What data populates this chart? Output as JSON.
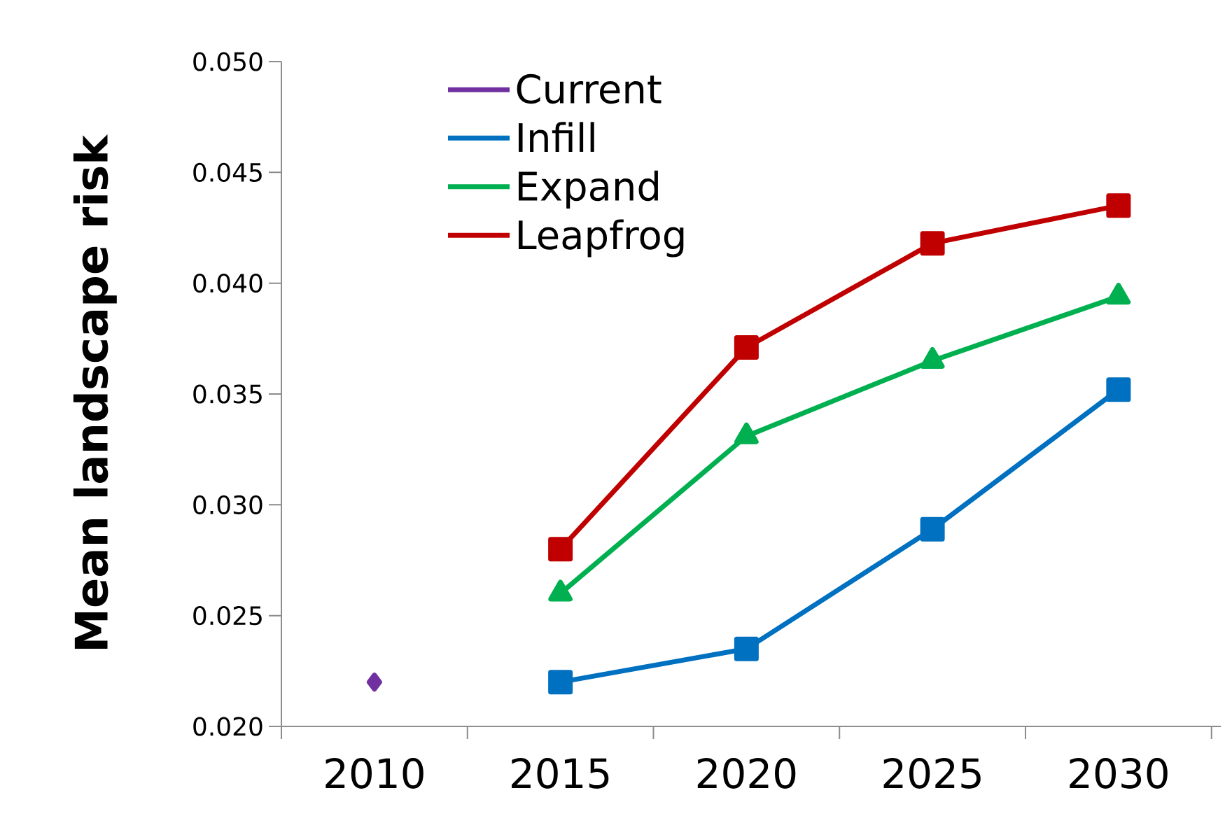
{
  "chart_data": {
    "type": "line",
    "ylabel": "Mean landscape risk",
    "categories": [
      "2010",
      "2015",
      "2020",
      "2025",
      "2030"
    ],
    "series": [
      {
        "name": "Current",
        "color": "#7030a0",
        "marker": "diamond",
        "values": [
          0.022,
          null,
          null,
          null,
          null
        ]
      },
      {
        "name": "Infill",
        "color": "#0070c0",
        "marker": "square",
        "values": [
          null,
          0.022,
          0.0235,
          0.0289,
          0.0352
        ]
      },
      {
        "name": "Expand",
        "color": "#00b050",
        "marker": "triangle",
        "values": [
          null,
          0.026,
          0.0331,
          0.0365,
          0.0394
        ]
      },
      {
        "name": "Leapfrog",
        "color": "#c00000",
        "marker": "square",
        "values": [
          null,
          0.028,
          0.0371,
          0.0418,
          0.0435
        ]
      }
    ],
    "ylim": [
      0.02,
      0.05
    ],
    "yticks": [
      {
        "value": 0.02,
        "label": "0.020"
      },
      {
        "value": 0.025,
        "label": "0.025"
      },
      {
        "value": 0.03,
        "label": "0.030"
      },
      {
        "value": 0.035,
        "label": "0.035"
      },
      {
        "value": 0.04,
        "label": "0.040"
      },
      {
        "value": 0.045,
        "label": "0.045"
      },
      {
        "value": 0.05,
        "label": "0.050"
      }
    ],
    "grid": false,
    "legend": "top left"
  }
}
